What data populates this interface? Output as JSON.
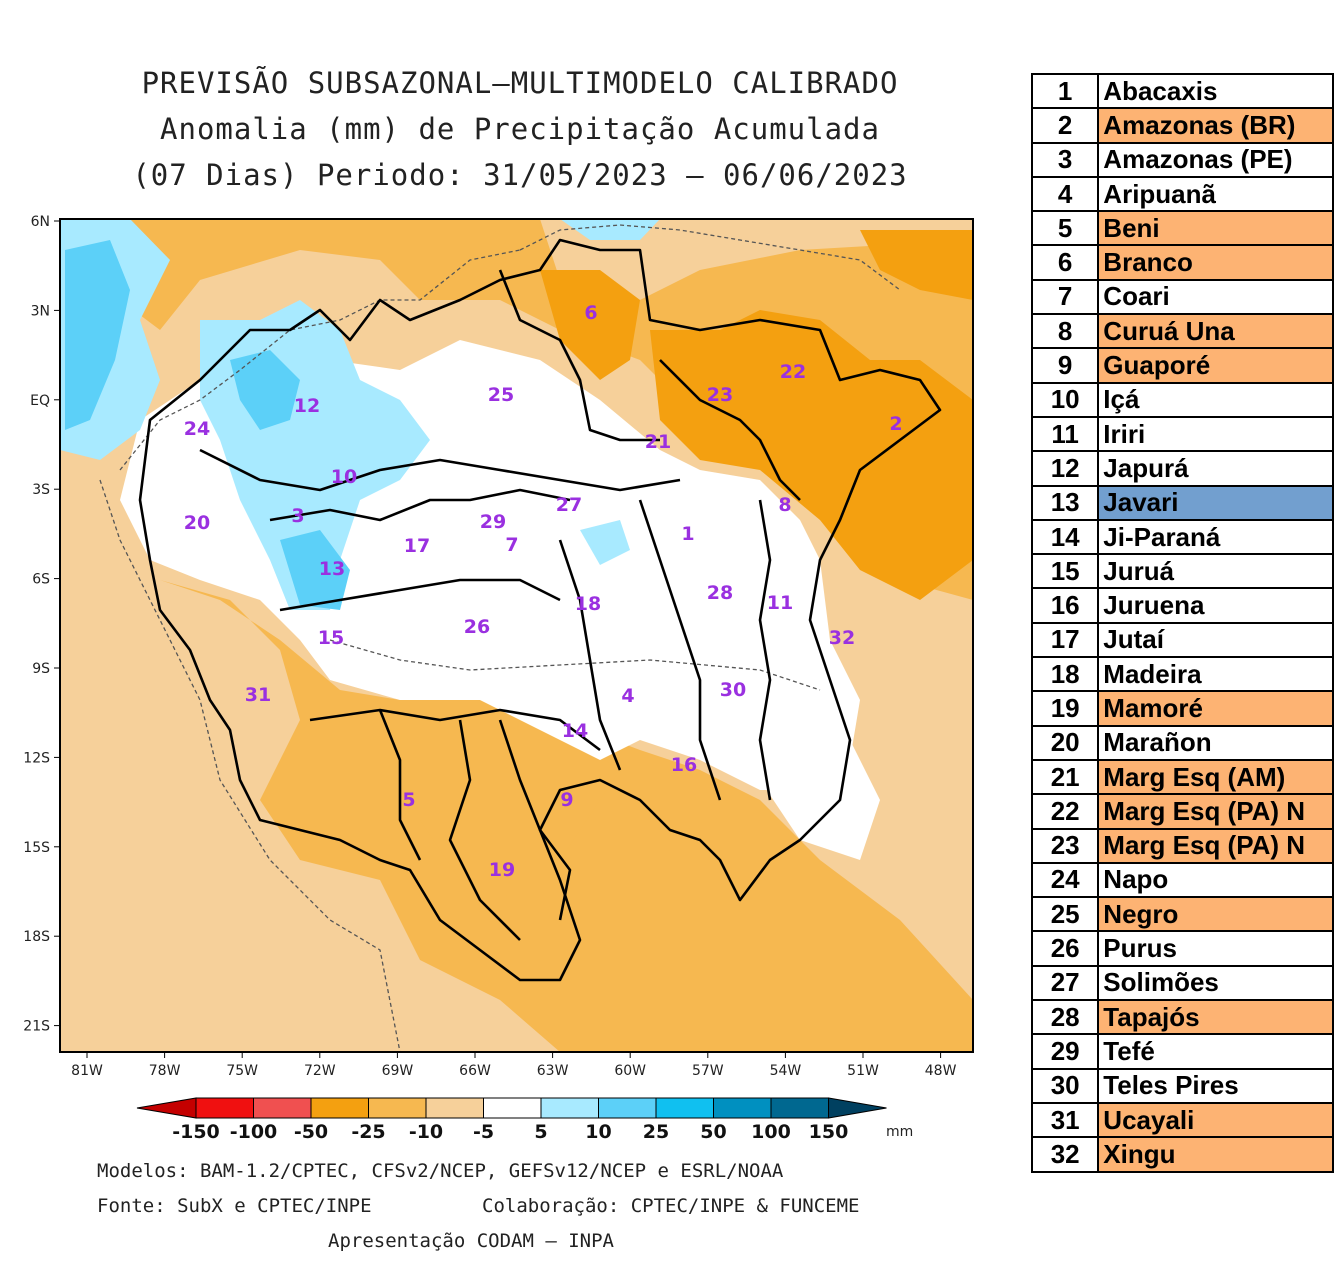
{
  "title": {
    "line1": "PREVISÃO SUBSAZONAL—MULTIMODELO CALIBRADO",
    "line2": "Anomalia (mm) de Precipitação Acumulada",
    "line3": "(07 Dias) Periodo: 31/05/2023 — 06/06/2023"
  },
  "axes": {
    "lat_labels": [
      "6N",
      "3N",
      "EQ",
      "3S",
      "6S",
      "9S",
      "12S",
      "15S",
      "18S",
      "21S"
    ],
    "lon_labels": [
      "81W",
      "78W",
      "75W",
      "72W",
      "69W",
      "66W",
      "63W",
      "60W",
      "57W",
      "54W",
      "51W",
      "48W"
    ]
  },
  "colorbar": {
    "ticks": [
      "-150",
      "-100",
      "-50",
      "-25",
      "-10",
      "-5",
      "5",
      "10",
      "25",
      "50",
      "100",
      "150"
    ],
    "unit": "mm",
    "colors": [
      "#c40000",
      "#f01010",
      "#f05050",
      "#f4a010",
      "#f6b850",
      "#f6d09a",
      "#ffffff",
      "#a8eaff",
      "#5cd0f8",
      "#10c0f0",
      "#0090c0",
      "#006890",
      "#004060"
    ]
  },
  "footer": {
    "models": "Modelos: BAM-1.2/CPTEC, CFSv2/NCEP, GEFSv12/NCEP e ESRL/NOAA",
    "source": "Fonte: SubX e CPTEC/INPE",
    "collab": "Colaboração: CPTEC/INPE & FUNCEME",
    "presentation": "Apresentação CODAM — INPA"
  },
  "basins": [
    {
      "num": "1",
      "name": "Abacaxis",
      "color": "#ffffff"
    },
    {
      "num": "2",
      "name": "Amazonas (BR)",
      "color": "#fdb373"
    },
    {
      "num": "3",
      "name": "Amazonas (PE)",
      "color": "#ffffff"
    },
    {
      "num": "4",
      "name": "Aripuanã",
      "color": "#ffffff"
    },
    {
      "num": "5",
      "name": "Beni",
      "color": "#fdb373"
    },
    {
      "num": "6",
      "name": "Branco",
      "color": "#fdb373"
    },
    {
      "num": "7",
      "name": "Coari",
      "color": "#ffffff"
    },
    {
      "num": "8",
      "name": "Curuá Una",
      "color": "#fdb373"
    },
    {
      "num": "9",
      "name": "Guaporé",
      "color": "#fdb373"
    },
    {
      "num": "10",
      "name": "Içá",
      "color": "#ffffff"
    },
    {
      "num": "11",
      "name": "Iriri",
      "color": "#ffffff"
    },
    {
      "num": "12",
      "name": "Japurá",
      "color": "#ffffff"
    },
    {
      "num": "13",
      "name": "Javari",
      "color": "#729fcf"
    },
    {
      "num": "14",
      "name": "Ji-Paraná",
      "color": "#ffffff"
    },
    {
      "num": "15",
      "name": "Juruá",
      "color": "#ffffff"
    },
    {
      "num": "16",
      "name": "Juruena",
      "color": "#ffffff"
    },
    {
      "num": "17",
      "name": "Jutaí",
      "color": "#ffffff"
    },
    {
      "num": "18",
      "name": "Madeira",
      "color": "#ffffff"
    },
    {
      "num": "19",
      "name": "Mamoré",
      "color": "#fdb373"
    },
    {
      "num": "20",
      "name": "Marañon",
      "color": "#ffffff"
    },
    {
      "num": "21",
      "name": "Marg Esq (AM)",
      "color": "#fdb373"
    },
    {
      "num": "22",
      "name": "Marg Esq (PA) N",
      "color": "#fdb373"
    },
    {
      "num": "23",
      "name": "Marg Esq (PA) N",
      "color": "#fdb373"
    },
    {
      "num": "24",
      "name": "Napo",
      "color": "#ffffff"
    },
    {
      "num": "25",
      "name": "Negro",
      "color": "#fdb373"
    },
    {
      "num": "26",
      "name": "Purus",
      "color": "#ffffff"
    },
    {
      "num": "27",
      "name": "Solimões",
      "color": "#ffffff"
    },
    {
      "num": "28",
      "name": "Tapajós",
      "color": "#fdb373"
    },
    {
      "num": "29",
      "name": "Tefé",
      "color": "#ffffff"
    },
    {
      "num": "30",
      "name": "Teles Pires",
      "color": "#ffffff"
    },
    {
      "num": "31",
      "name": "Ucayali",
      "color": "#fdb373"
    },
    {
      "num": "32",
      "name": "Xingu",
      "color": "#fdb373"
    }
  ],
  "map_labels": [
    "6",
    "25",
    "23",
    "22",
    "2",
    "21",
    "12",
    "24",
    "10",
    "20",
    "3",
    "29",
    "7",
    "27",
    "1",
    "8",
    "17",
    "13",
    "18",
    "28",
    "11",
    "15",
    "26",
    "32",
    "4",
    "30",
    "31",
    "14",
    "16",
    "5",
    "9",
    "19"
  ]
}
